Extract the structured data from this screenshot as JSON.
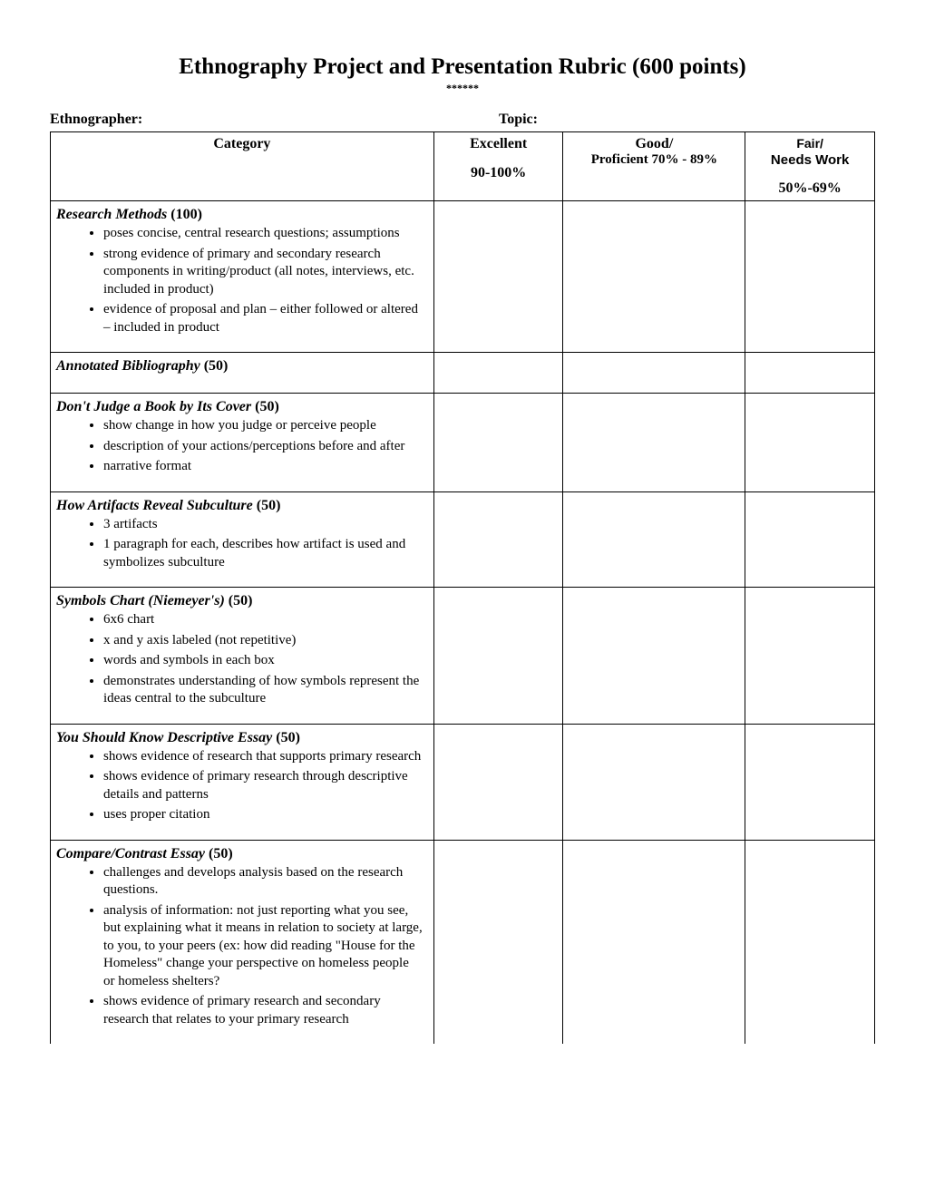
{
  "document": {
    "title": "Ethnography Project and Presentation Rubric (600 points)",
    "subtitle": "******",
    "fields": {
      "ethnographer_label": "Ethnographer:",
      "topic_label": "Topic:"
    }
  },
  "table": {
    "headers": {
      "category": "Category",
      "excellent": {
        "title": "Excellent",
        "percent": "90-100%"
      },
      "good": {
        "title": "Good/",
        "subhead": "Proficient 70% - 89%"
      },
      "fair": {
        "title": "Fair/",
        "subhead": "Needs Work",
        "percent": "50%-69%"
      }
    },
    "rows": [
      {
        "title": "Research Methods",
        "points": "(100)",
        "bullets": [
          "poses concise, central research questions; assumptions",
          "strong evidence of primary and secondary research components in writing/product (all notes, interviews, etc. included in product)",
          "evidence of proposal and plan – either followed or altered – included in product"
        ]
      },
      {
        "title": "Annotated Bibliography",
        "points": " (50)",
        "bullets": []
      },
      {
        "title": "Don't Judge a Book by Its Cover",
        "points": "(50)",
        "bullets": [
          "show change in how you judge or perceive people",
          "description of your actions/perceptions before and after",
          "narrative format"
        ]
      },
      {
        "title": "How Artifacts Reveal Subculture",
        "points": "(50)",
        "bullets": [
          "3 artifacts",
          "1 paragraph for each, describes how artifact is used and symbolizes subculture"
        ]
      },
      {
        "title": "Symbols Chart (Niemeyer's)",
        "points": "(50)",
        "bullets": [
          "6x6 chart",
          "x and y axis labeled (not repetitive)",
          "words and symbols in each box",
          "demonstrates understanding of how symbols represent the ideas central to the subculture"
        ]
      },
      {
        "title": "You Should Know Descriptive Essay",
        "points": "(50)",
        "bullets": [
          "shows evidence of research that supports primary research",
          "shows evidence of primary research through descriptive details and patterns",
          "uses proper citation"
        ]
      },
      {
        "title": "Compare/Contrast Essay",
        "points": "(50)",
        "bullets": [
          "challenges and develops analysis based on the research questions.",
          "analysis of information: not just reporting what you see, but explaining what it means in relation to society at large, to you, to your peers  (ex: how did reading \"House for the Homeless\" change your perspective on homeless people or homeless shelters?",
          "shows evidence of primary research and secondary research that relates to your primary research"
        ]
      }
    ]
  }
}
